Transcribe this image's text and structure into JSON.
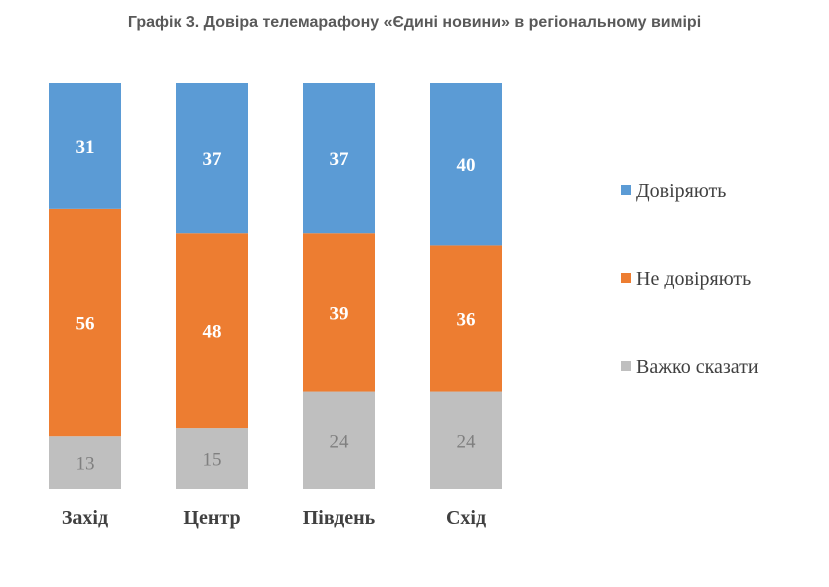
{
  "chart_data": {
    "type": "bar",
    "stacked": true,
    "title": "Графік 3. Довіра телемарафону «Єдині новини» в регіональному вимірі",
    "categories": [
      "Захід",
      "Центр",
      "Південь",
      "Схід"
    ],
    "series": [
      {
        "name": "Важко сказати",
        "color": "#bfbfbf",
        "values": [
          13,
          15,
          24,
          24
        ]
      },
      {
        "name": "Не довіряють",
        "color": "#ed7d31",
        "values": [
          56,
          48,
          39,
          36
        ]
      },
      {
        "name": "Довіряють",
        "color": "#5b9bd5",
        "values": [
          31,
          37,
          37,
          40
        ]
      }
    ],
    "legend_order": [
      "Довіряють",
      "Не довіряють",
      "Важко сказати"
    ],
    "legend_position": "right",
    "ylim": [
      0,
      100
    ],
    "grid": false,
    "xlabel": "",
    "ylabel": ""
  }
}
